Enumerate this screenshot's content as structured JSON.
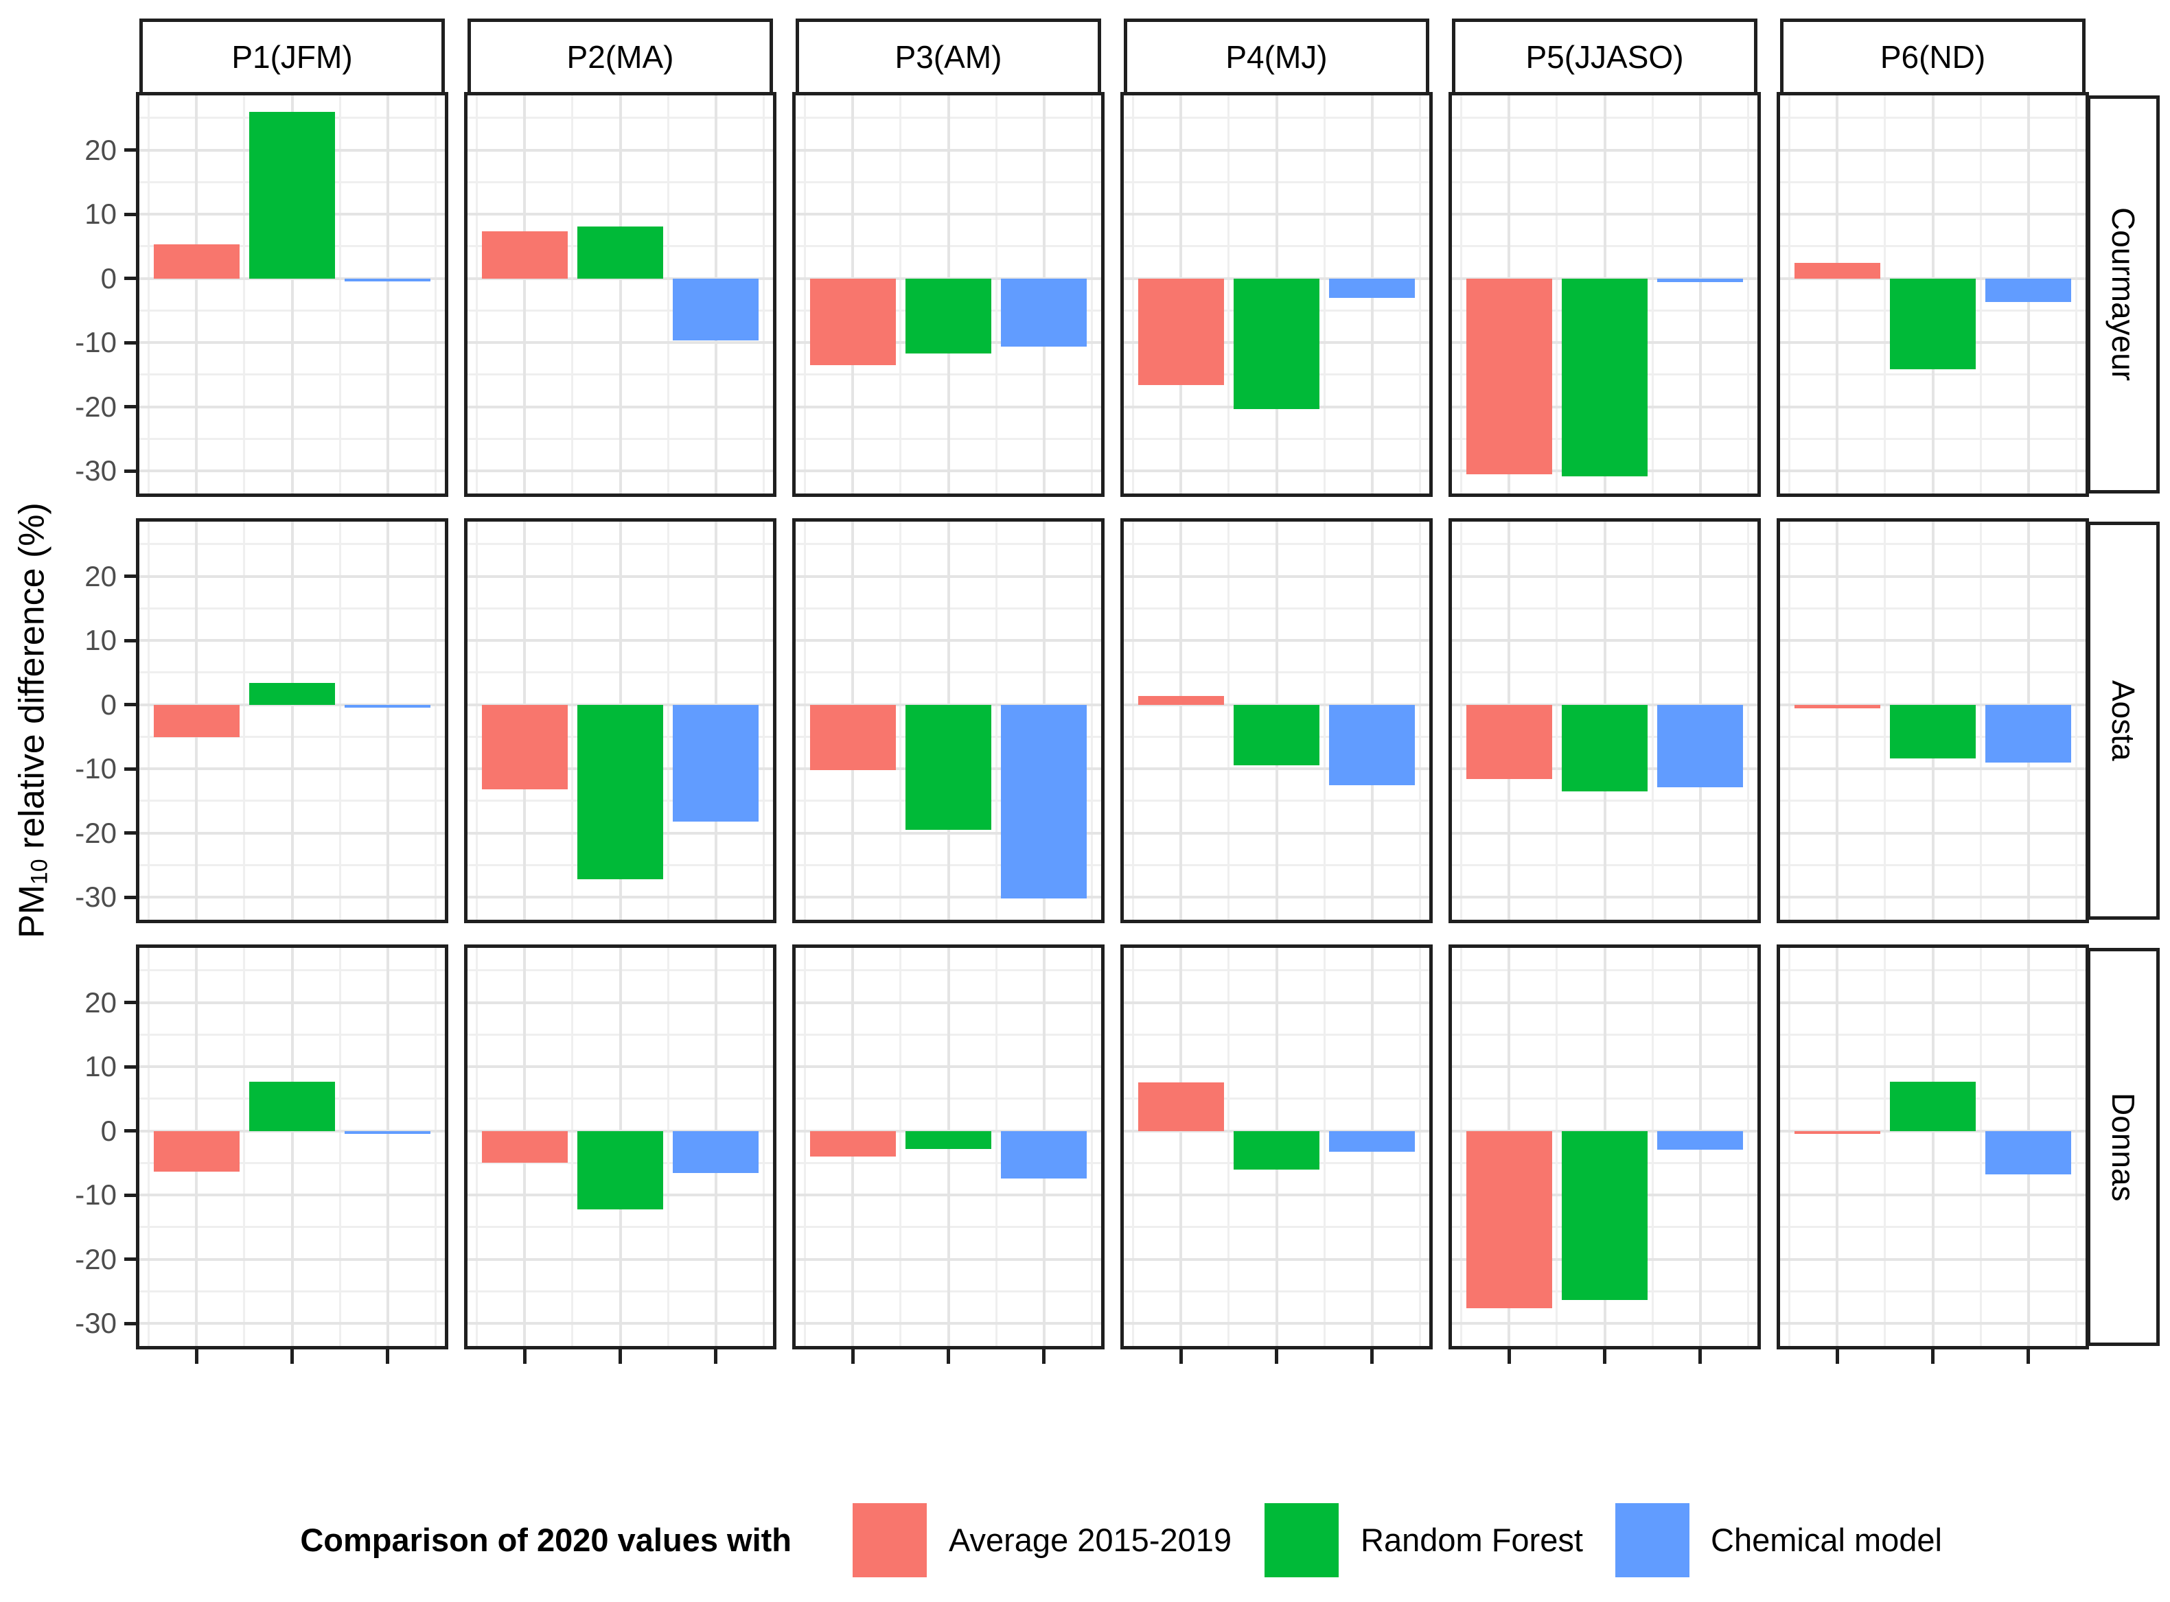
{
  "figure": {
    "y_axis_title": {
      "prefix": "PM",
      "subscript": "10",
      "suffix": " relative difference (%)"
    }
  },
  "legend": {
    "title": "Comparison of 2020 values with",
    "items": [
      {
        "label": "Average 2015-2019",
        "color": "#F8766D"
      },
      {
        "label": "Random Forest",
        "color": "#00BA38"
      },
      {
        "label": "Chemical model",
        "color": "#619CFF"
      }
    ]
  },
  "chart_data": {
    "type": "bar",
    "title": "",
    "xlabel": "",
    "ylabel": "PM10 relative difference (%)",
    "facet_columns": [
      "P1(JFM)",
      "P2(MA)",
      "P3(AM)",
      "P4(MJ)",
      "P5(JJASO)",
      "P6(ND)"
    ],
    "facet_rows": [
      "Courmayeur",
      "Aosta",
      "Donnas"
    ],
    "series": [
      "Average 2015-2019",
      "Random Forest",
      "Chemical model"
    ],
    "series_colors": [
      "#F8766D",
      "#00BA38",
      "#619CFF"
    ],
    "ylim": [
      -33.5,
      28.5
    ],
    "y_major_ticks": [
      20,
      10,
      0,
      -10,
      -20,
      -30
    ],
    "y_minor_ticks": [
      25,
      15,
      5,
      -5,
      -15,
      -25
    ],
    "grid": "on",
    "legend_position": "bottom",
    "values": [
      [
        [
          5.3,
          25.9,
          -0.3
        ],
        [
          7.3,
          8.1,
          -9.7
        ],
        [
          -13.5,
          -11.7,
          -10.6
        ],
        [
          -16.6,
          -20.3,
          -3.0
        ],
        [
          -30.5,
          -30.8,
          -0.6
        ],
        [
          2.4,
          -14.1,
          -3.7
        ]
      ],
      [
        [
          -5.1,
          3.4,
          -0.2
        ],
        [
          -13.2,
          -27.2,
          -18.2
        ],
        [
          -10.2,
          -19.5,
          -30.2
        ],
        [
          1.3,
          -9.5,
          -12.5
        ],
        [
          -11.6,
          -13.5,
          -12.9
        ],
        [
          -0.6,
          -8.4,
          -9.0
        ]
      ],
      [
        [
          -6.4,
          7.7,
          -0.2
        ],
        [
          -5.0,
          -12.2,
          -6.6
        ],
        [
          -4.0,
          -2.8,
          -7.4
        ],
        [
          7.6,
          -6.0,
          -3.2
        ],
        [
          -27.6,
          -26.3,
          -2.9
        ],
        [
          -0.3,
          7.7,
          -6.8
        ]
      ]
    ]
  }
}
